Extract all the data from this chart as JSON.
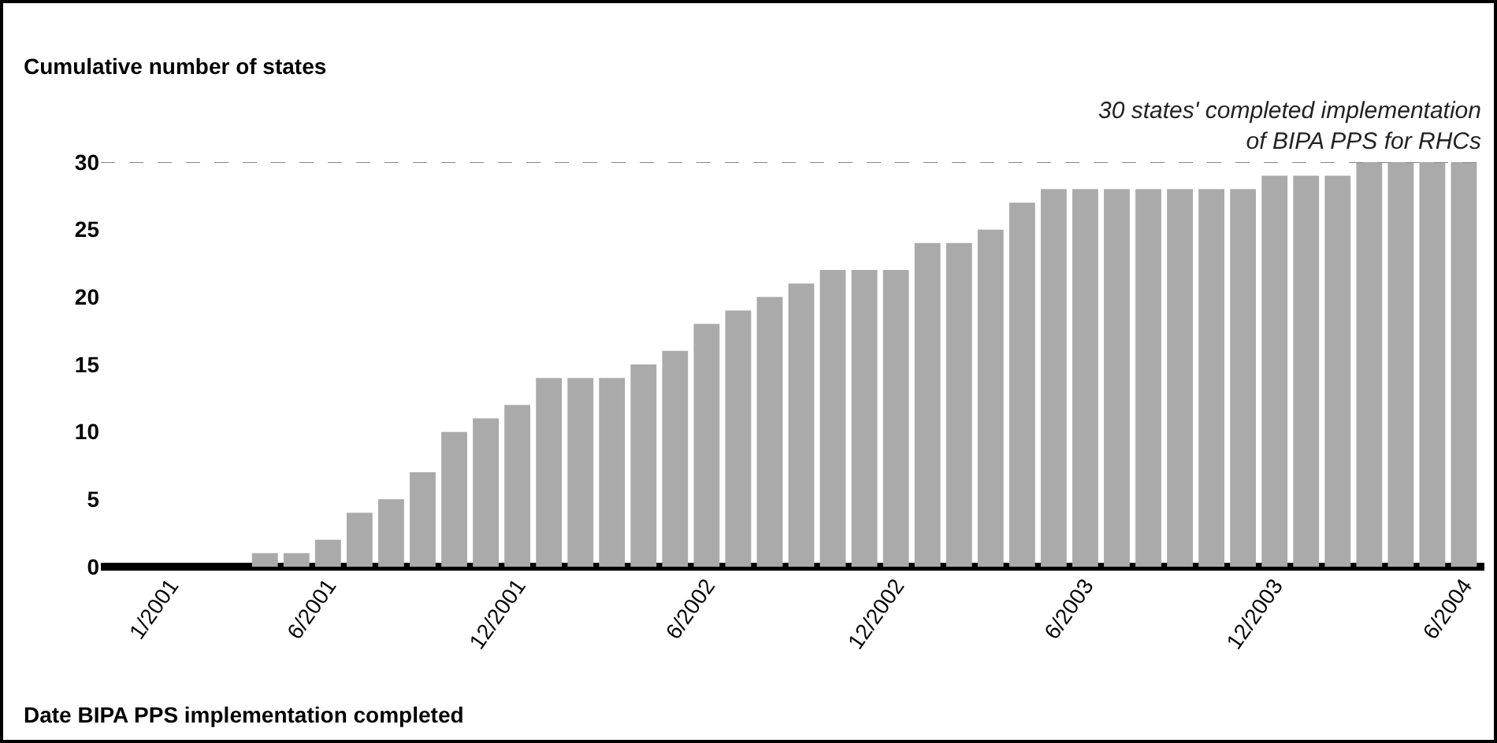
{
  "chart_data": {
    "type": "bar",
    "ylabel": "Cumulative number of states",
    "xlabel": "Date BIPA PPS implementation completed",
    "categories": [
      "1/2001",
      null,
      null,
      null,
      null,
      "6/2001",
      null,
      null,
      null,
      null,
      null,
      "12/2001",
      null,
      null,
      null,
      null,
      null,
      "6/2002",
      null,
      null,
      null,
      null,
      null,
      "12/2002",
      null,
      null,
      null,
      null,
      null,
      "6/2003",
      null,
      null,
      null,
      null,
      null,
      "12/2003",
      null,
      null,
      null,
      null,
      null,
      "6/2004"
    ],
    "values": [
      0,
      0,
      0,
      1,
      1,
      2,
      4,
      5,
      7,
      10,
      11,
      12,
      14,
      14,
      14,
      15,
      16,
      18,
      19,
      20,
      21,
      22,
      22,
      22,
      24,
      24,
      25,
      27,
      28,
      28,
      28,
      28,
      28,
      28,
      28,
      29,
      29,
      29,
      30,
      30,
      30,
      30
    ],
    "color": "#aaaaaa",
    "ylim": [
      0,
      30
    ],
    "yticks": [
      0,
      5,
      10,
      15,
      20,
      25,
      30
    ],
    "grid": false,
    "ref_lines": [
      {
        "axis": "y",
        "value": 30,
        "label": "30 states' completed implementation\nof BIPA PPS for RHCs",
        "color": "#888888",
        "line_style": "dashed"
      }
    ]
  }
}
